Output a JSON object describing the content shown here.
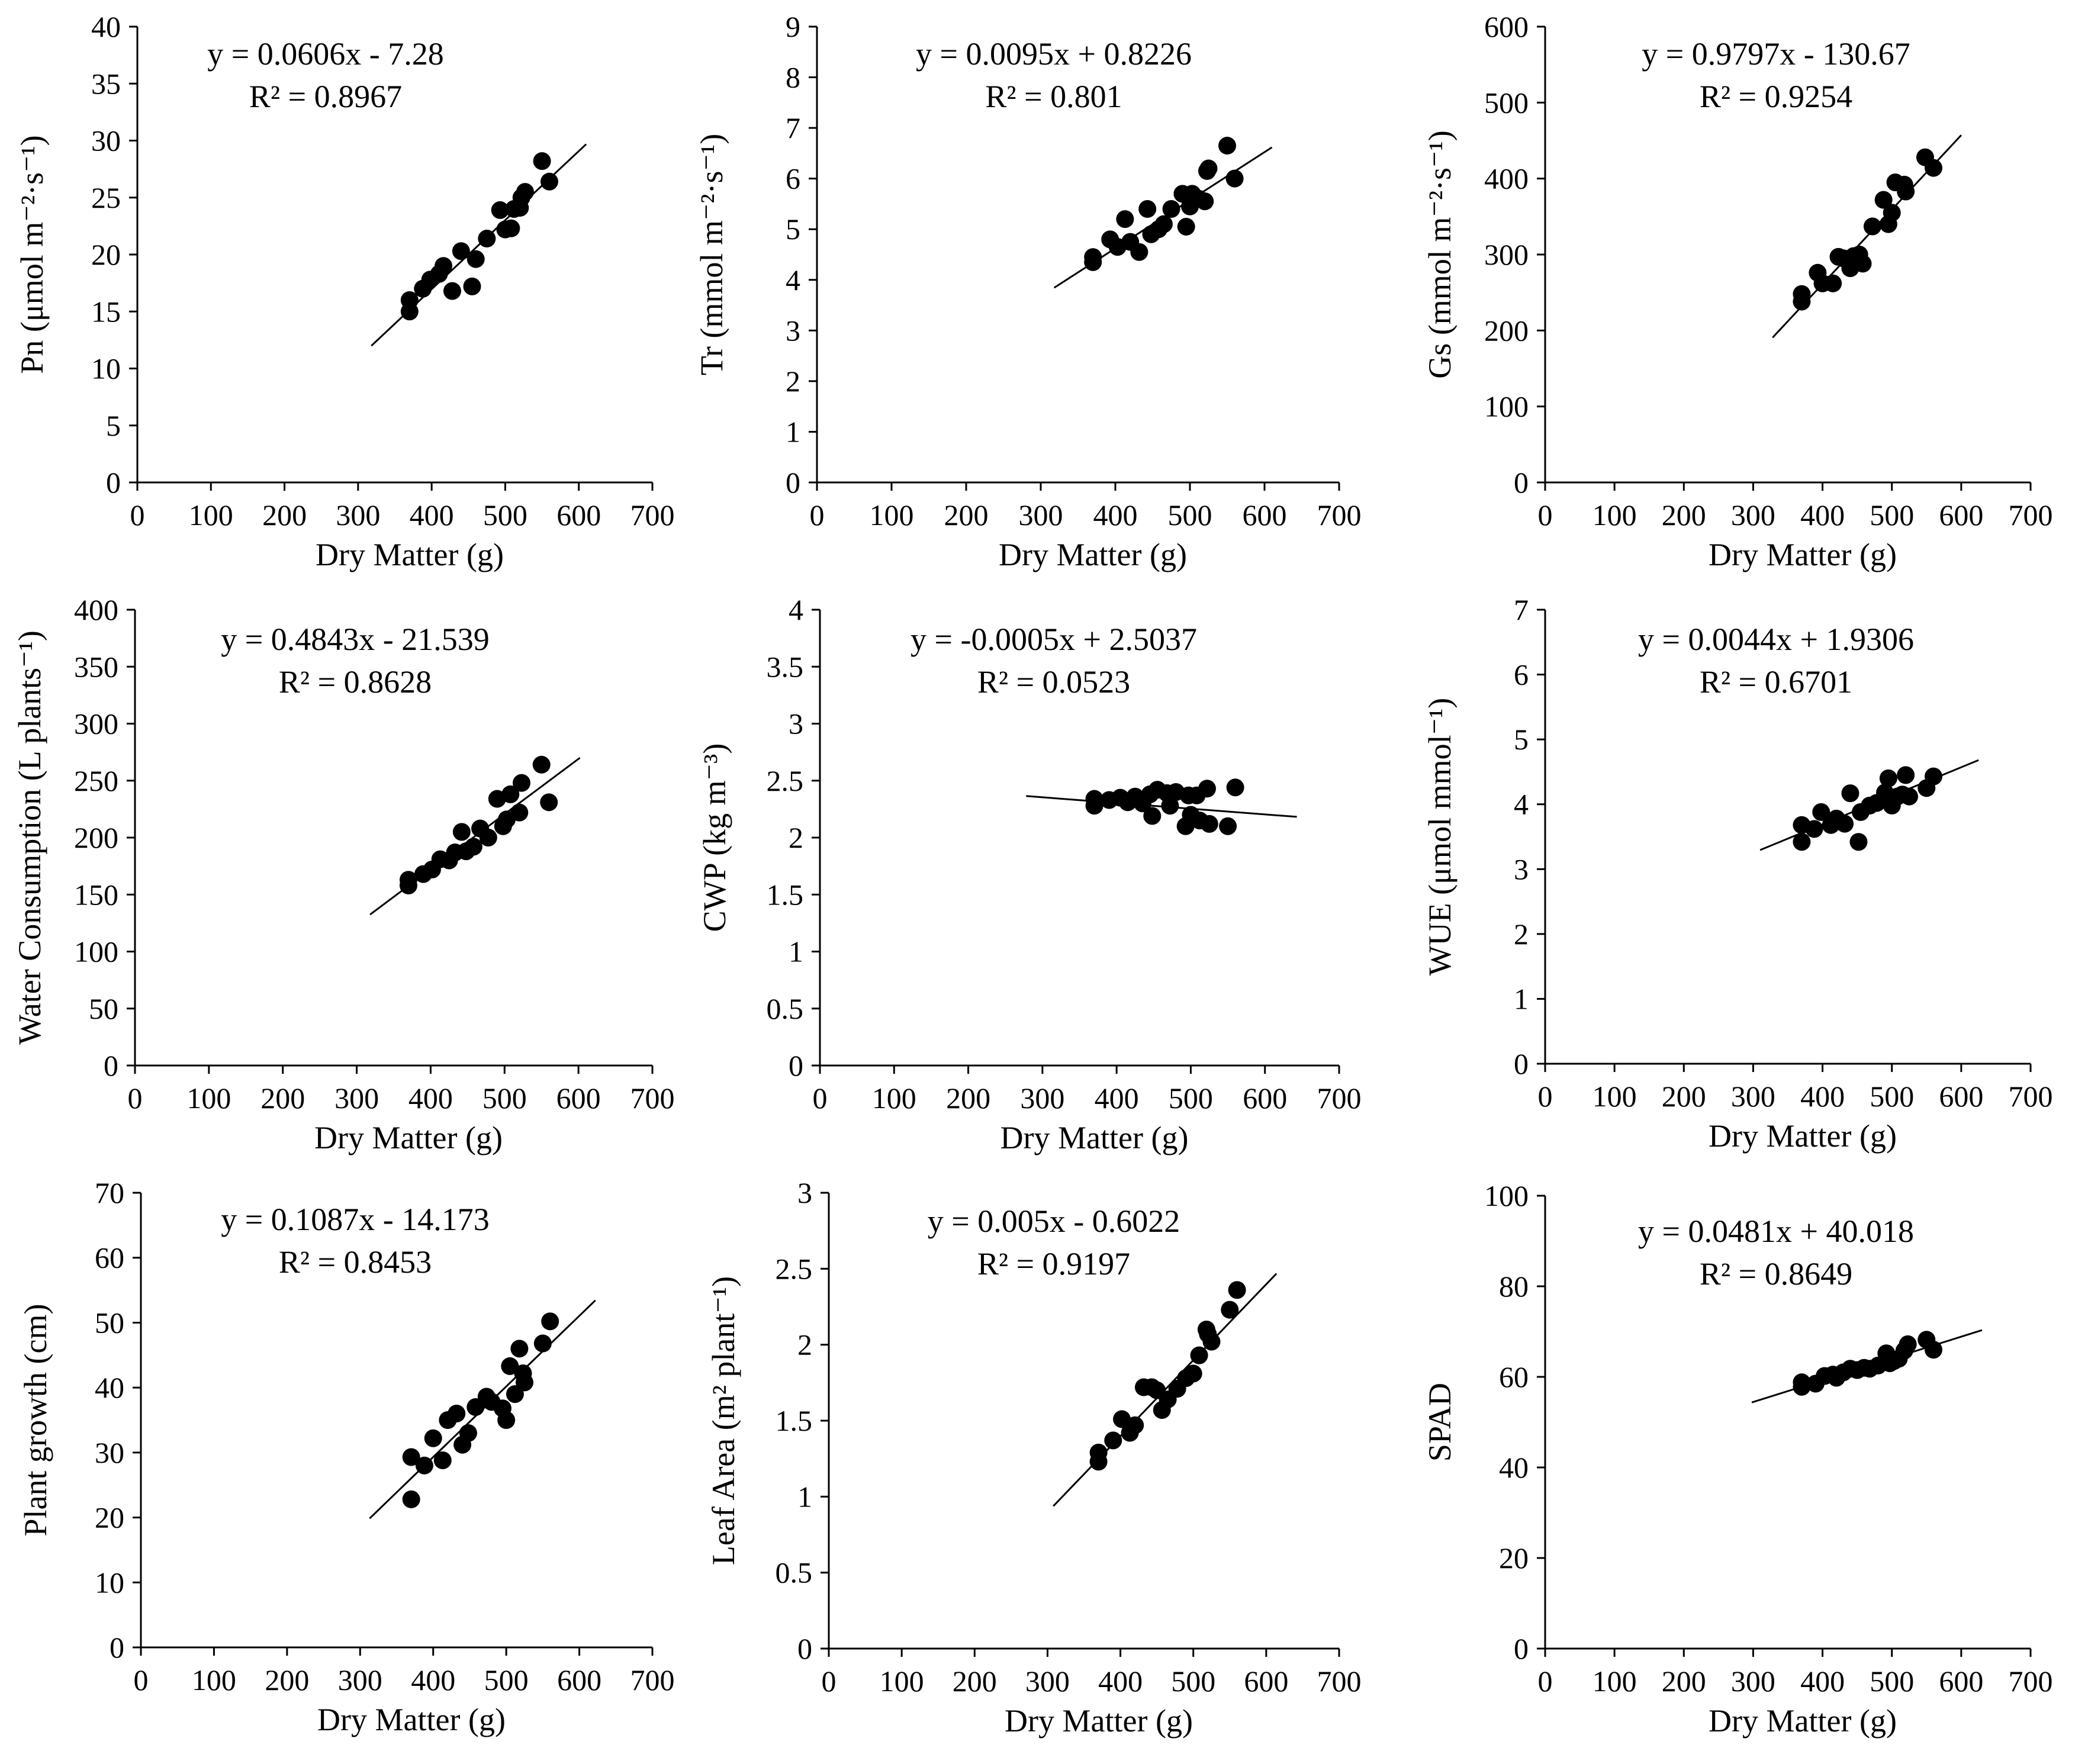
{
  "chart_data": [
    {
      "type": "scatter",
      "xlabel": "Dry Matter (g)",
      "ylabel": "Pn (μmol m⁻²·s⁻¹)",
      "xlim": [
        0,
        700
      ],
      "xticks": [
        0,
        100,
        200,
        300,
        400,
        500,
        600,
        700
      ],
      "ylim": [
        0,
        40
      ],
      "yticks": [
        0,
        5,
        10,
        15,
        20,
        25,
        30,
        35,
        40
      ],
      "equation": "y = 0.0606x - 7.28",
      "r2_label": "R² = 0.8967",
      "trendline": {
        "slope": 0.0606,
        "intercept": -7.28,
        "x_range": [
          318,
          610
        ]
      },
      "points": [
        [
          370,
          16.0
        ],
        [
          370,
          15.0
        ],
        [
          388,
          17.0
        ],
        [
          398,
          17.8
        ],
        [
          410,
          18.3
        ],
        [
          416,
          19.0
        ],
        [
          428,
          16.8
        ],
        [
          440,
          20.3
        ],
        [
          455,
          17.2
        ],
        [
          460,
          19.6
        ],
        [
          475,
          21.4
        ],
        [
          493,
          23.9
        ],
        [
          500,
          22.2
        ],
        [
          508,
          22.3
        ],
        [
          512,
          24.0
        ],
        [
          520,
          24.1
        ],
        [
          522,
          25.0
        ],
        [
          527,
          25.5
        ],
        [
          550,
          28.2
        ],
        [
          560,
          26.4
        ]
      ]
    },
    {
      "type": "scatter",
      "xlabel": "Dry Matter (g)",
      "ylabel": "Tr (mmol m⁻²·s⁻¹)",
      "xlim": [
        0,
        700
      ],
      "xticks": [
        0,
        100,
        200,
        300,
        400,
        500,
        600,
        700
      ],
      "ylim": [
        0,
        9
      ],
      "yticks": [
        0,
        1,
        2,
        3,
        4,
        5,
        6,
        7,
        8,
        9
      ],
      "equation": "y = 0.0095x + 0.8226",
      "r2_label": "R² = 0.801",
      "trendline": {
        "slope": 0.0095,
        "intercept": 0.8226,
        "x_range": [
          318,
          610
        ]
      },
      "points": [
        [
          370,
          4.35
        ],
        [
          370,
          4.45
        ],
        [
          393,
          4.8
        ],
        [
          403,
          4.65
        ],
        [
          413,
          5.2
        ],
        [
          420,
          4.75
        ],
        [
          432,
          4.55
        ],
        [
          443,
          5.4
        ],
        [
          448,
          4.9
        ],
        [
          458,
          5.0
        ],
        [
          465,
          5.1
        ],
        [
          475,
          5.4
        ],
        [
          490,
          5.7
        ],
        [
          495,
          5.05
        ],
        [
          500,
          5.45
        ],
        [
          503,
          5.7
        ],
        [
          512,
          5.6
        ],
        [
          520,
          5.55
        ],
        [
          523,
          6.15
        ],
        [
          525,
          6.2
        ],
        [
          550,
          6.65
        ],
        [
          560,
          6.0
        ]
      ]
    },
    {
      "type": "scatter",
      "xlabel": "Dry Matter (g)",
      "ylabel": "Gs (mmol m⁻²·s⁻¹)",
      "xlim": [
        0,
        700
      ],
      "xticks": [
        0,
        100,
        200,
        300,
        400,
        500,
        600,
        700
      ],
      "ylim": [
        0,
        600
      ],
      "yticks": [
        0,
        100,
        200,
        300,
        400,
        500,
        600
      ],
      "equation": "y = 0.9797x - 130.67",
      "r2_label": "R² = 0.9254",
      "trendline": {
        "slope": 0.9797,
        "intercept": -130.67,
        "x_range": [
          328,
          600
        ]
      },
      "points": [
        [
          370,
          248
        ],
        [
          370,
          238
        ],
        [
          393,
          276
        ],
        [
          400,
          262
        ],
        [
          415,
          262
        ],
        [
          423,
          297
        ],
        [
          430,
          295
        ],
        [
          440,
          282
        ],
        [
          445,
          298
        ],
        [
          453,
          300
        ],
        [
          458,
          288
        ],
        [
          472,
          337
        ],
        [
          488,
          372
        ],
        [
          495,
          340
        ],
        [
          500,
          355
        ],
        [
          505,
          395
        ],
        [
          518,
          392
        ],
        [
          520,
          383
        ],
        [
          548,
          428
        ],
        [
          560,
          414
        ]
      ]
    },
    {
      "type": "scatter",
      "xlabel": "Dry Matter (g)",
      "ylabel": "Water Consumption (L plants⁻¹)",
      "xlim": [
        0,
        700
      ],
      "xticks": [
        0,
        100,
        200,
        300,
        400,
        500,
        600,
        700
      ],
      "ylim": [
        0,
        400
      ],
      "yticks": [
        0,
        50,
        100,
        150,
        200,
        250,
        300,
        350,
        400
      ],
      "equation": "y = 0.4843x - 21.539",
      "r2_label": "R² = 0.8628",
      "trendline": {
        "slope": 0.4843,
        "intercept": -21.539,
        "x_range": [
          318,
          602
        ]
      },
      "points": [
        [
          370,
          163
        ],
        [
          370,
          158
        ],
        [
          390,
          168
        ],
        [
          402,
          172
        ],
        [
          413,
          181
        ],
        [
          425,
          180
        ],
        [
          433,
          187
        ],
        [
          442,
          205
        ],
        [
          448,
          188
        ],
        [
          458,
          192
        ],
        [
          467,
          208
        ],
        [
          478,
          200
        ],
        [
          490,
          234
        ],
        [
          498,
          210
        ],
        [
          503,
          216
        ],
        [
          508,
          238
        ],
        [
          520,
          222
        ],
        [
          523,
          248
        ],
        [
          550,
          264
        ],
        [
          560,
          231
        ]
      ]
    },
    {
      "type": "scatter",
      "xlabel": "Dry Matter (g)",
      "ylabel": "CWP (kg m⁻³)",
      "xlim": [
        0,
        700
      ],
      "xticks": [
        0,
        100,
        200,
        300,
        400,
        500,
        600,
        700
      ],
      "ylim": [
        0,
        4
      ],
      "yticks": [
        0,
        0.5,
        1,
        1.5,
        2,
        2.5,
        3,
        3.5,
        4
      ],
      "equation": "y = -0.0005x + 2.5037",
      "r2_label": "R² = 0.0523",
      "trendline": {
        "slope": -0.0005,
        "intercept": 2.5037,
        "x_range": [
          278,
          643
        ]
      },
      "points": [
        [
          370,
          2.34
        ],
        [
          370,
          2.28
        ],
        [
          390,
          2.33
        ],
        [
          405,
          2.35
        ],
        [
          415,
          2.31
        ],
        [
          425,
          2.36
        ],
        [
          435,
          2.3
        ],
        [
          445,
          2.38
        ],
        [
          448,
          2.19
        ],
        [
          455,
          2.42
        ],
        [
          468,
          2.39
        ],
        [
          472,
          2.28
        ],
        [
          480,
          2.4
        ],
        [
          493,
          2.1
        ],
        [
          497,
          2.37
        ],
        [
          500,
          2.2
        ],
        [
          508,
          2.37
        ],
        [
          512,
          2.15
        ],
        [
          522,
          2.43
        ],
        [
          525,
          2.12
        ],
        [
          550,
          2.1
        ],
        [
          560,
          2.44
        ]
      ]
    },
    {
      "type": "scatter",
      "xlabel": "Dry Matter (g)",
      "ylabel": "WUE (μmol mmol⁻¹)",
      "xlim": [
        0,
        700
      ],
      "xticks": [
        0,
        100,
        200,
        300,
        400,
        500,
        600,
        700
      ],
      "ylim": [
        0,
        7
      ],
      "yticks": [
        0,
        1,
        2,
        3,
        4,
        5,
        6,
        7
      ],
      "equation": "y = 0.0044x + 1.9306",
      "r2_label": "R² = 0.6701",
      "trendline": {
        "slope": 0.0044,
        "intercept": 1.9306,
        "x_range": [
          310,
          625
        ]
      },
      "points": [
        [
          370,
          3.68
        ],
        [
          370,
          3.42
        ],
        [
          388,
          3.62
        ],
        [
          398,
          3.88
        ],
        [
          412,
          3.68
        ],
        [
          420,
          3.78
        ],
        [
          432,
          3.7
        ],
        [
          440,
          4.17
        ],
        [
          452,
          3.42
        ],
        [
          455,
          3.88
        ],
        [
          468,
          3.98
        ],
        [
          478,
          4.02
        ],
        [
          490,
          4.18
        ],
        [
          495,
          4.4
        ],
        [
          500,
          3.98
        ],
        [
          508,
          4.12
        ],
        [
          515,
          4.15
        ],
        [
          520,
          4.45
        ],
        [
          525,
          4.12
        ],
        [
          550,
          4.25
        ],
        [
          560,
          4.43
        ]
      ]
    },
    {
      "type": "scatter",
      "xlabel": "Dry Matter (g)",
      "ylabel": "Plant growth (cm)",
      "xlim": [
        0,
        700
      ],
      "xticks": [
        0,
        100,
        200,
        300,
        400,
        500,
        600,
        700
      ],
      "ylim": [
        0,
        70
      ],
      "yticks": [
        0,
        10,
        20,
        30,
        40,
        50,
        60,
        70
      ],
      "equation": "y = 0.1087x - 14.173",
      "r2_label": "R² = 0.8453",
      "trendline": {
        "slope": 0.1087,
        "intercept": -14.173,
        "x_range": [
          313,
          622
        ]
      },
      "points": [
        [
          370,
          29.3
        ],
        [
          370,
          22.8
        ],
        [
          388,
          28.0
        ],
        [
          400,
          32.2
        ],
        [
          413,
          28.8
        ],
        [
          420,
          35.0
        ],
        [
          432,
          36.0
        ],
        [
          440,
          31.2
        ],
        [
          448,
          33.0
        ],
        [
          458,
          37.0
        ],
        [
          473,
          38.6
        ],
        [
          480,
          37.8
        ],
        [
          495,
          36.8
        ],
        [
          500,
          35.0
        ],
        [
          505,
          43.3
        ],
        [
          512,
          39.0
        ],
        [
          518,
          46.0
        ],
        [
          523,
          42.2
        ],
        [
          525,
          40.8
        ],
        [
          550,
          46.8
        ],
        [
          560,
          50.2
        ]
      ]
    },
    {
      "type": "scatter",
      "xlabel": "Dry Matter (g)",
      "ylabel": "Leaf Area (m² plant⁻¹)",
      "xlim": [
        0,
        700
      ],
      "xticks": [
        0,
        100,
        200,
        300,
        400,
        500,
        600,
        700
      ],
      "ylim": [
        0,
        3
      ],
      "yticks": [
        0,
        0.5,
        1,
        1.5,
        2,
        2.5,
        3
      ],
      "equation": "y = 0.005x - 0.6022",
      "r2_label": "R² = 0.9197",
      "trendline": {
        "slope": 0.005,
        "intercept": -0.6022,
        "x_range": [
          308,
          614
        ]
      },
      "points": [
        [
          370,
          1.29
        ],
        [
          370,
          1.23
        ],
        [
          390,
          1.37
        ],
        [
          402,
          1.51
        ],
        [
          413,
          1.42
        ],
        [
          420,
          1.47
        ],
        [
          432,
          1.72
        ],
        [
          443,
          1.72
        ],
        [
          450,
          1.7
        ],
        [
          457,
          1.57
        ],
        [
          465,
          1.64
        ],
        [
          478,
          1.71
        ],
        [
          490,
          1.78
        ],
        [
          500,
          1.81
        ],
        [
          508,
          1.93
        ],
        [
          518,
          2.1
        ],
        [
          520,
          2.07
        ],
        [
          525,
          2.02
        ],
        [
          550,
          2.23
        ],
        [
          560,
          2.36
        ]
      ]
    },
    {
      "type": "scatter",
      "xlabel": "Dry Matter (g)",
      "ylabel": "SPAD",
      "xlim": [
        0,
        700
      ],
      "xticks": [
        0,
        100,
        200,
        300,
        400,
        500,
        600,
        700
      ],
      "ylim": [
        0,
        100
      ],
      "yticks": [
        0,
        20,
        40,
        60,
        80,
        100
      ],
      "equation": "y = 0.0481x + 40.018",
      "r2_label": "R² = 0.8649",
      "trendline": {
        "slope": 0.0481,
        "intercept": 40.018,
        "x_range": [
          298,
          630
        ]
      },
      "points": [
        [
          370,
          58.8
        ],
        [
          370,
          57.8
        ],
        [
          390,
          58.5
        ],
        [
          403,
          60.2
        ],
        [
          415,
          60.5
        ],
        [
          420,
          59.8
        ],
        [
          430,
          61.0
        ],
        [
          440,
          61.8
        ],
        [
          450,
          61.5
        ],
        [
          460,
          62.0
        ],
        [
          468,
          61.8
        ],
        [
          480,
          62.5
        ],
        [
          492,
          65.2
        ],
        [
          497,
          63.0
        ],
        [
          503,
          63.5
        ],
        [
          510,
          64.0
        ],
        [
          518,
          65.8
        ],
        [
          523,
          67.2
        ],
        [
          550,
          68.2
        ],
        [
          560,
          66.0
        ]
      ]
    }
  ]
}
